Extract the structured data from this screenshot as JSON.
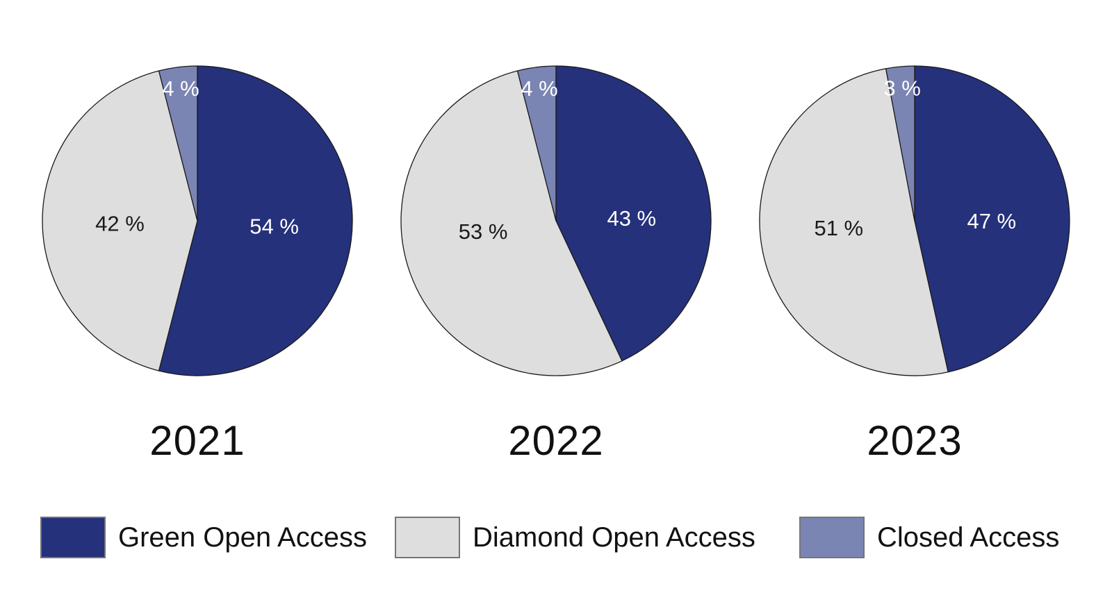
{
  "chart_data": {
    "type": "pie",
    "layout": "three pies side by side, shared legend at bottom",
    "categories": [
      "Green Open Access",
      "Diamond Open Access",
      "Closed Access"
    ],
    "colors": [
      "#25317b",
      "#dedede",
      "#7b85b3"
    ],
    "slice_label_text_colors": [
      "#ffffff",
      "#1a1a1a",
      "#ffffff"
    ],
    "slice_outline_color": "#1a1a1a",
    "start_angle_deg": 0,
    "direction": "clockwise from top",
    "pies": [
      {
        "year": "2021",
        "values": [
          54,
          42,
          4
        ],
        "labels": [
          "54 %",
          "42 %",
          "4 %"
        ]
      },
      {
        "year": "2022",
        "values": [
          43,
          53,
          4
        ],
        "labels": [
          "43 %",
          "53 %",
          "4 %"
        ]
      },
      {
        "year": "2023",
        "values": [
          47,
          51,
          3
        ],
        "labels": [
          "47 %",
          "51 %",
          "3 %"
        ]
      }
    ],
    "legend": {
      "position": "bottom",
      "entries": [
        "Green Open Access",
        "Diamond Open Access",
        "Closed Access"
      ]
    }
  }
}
